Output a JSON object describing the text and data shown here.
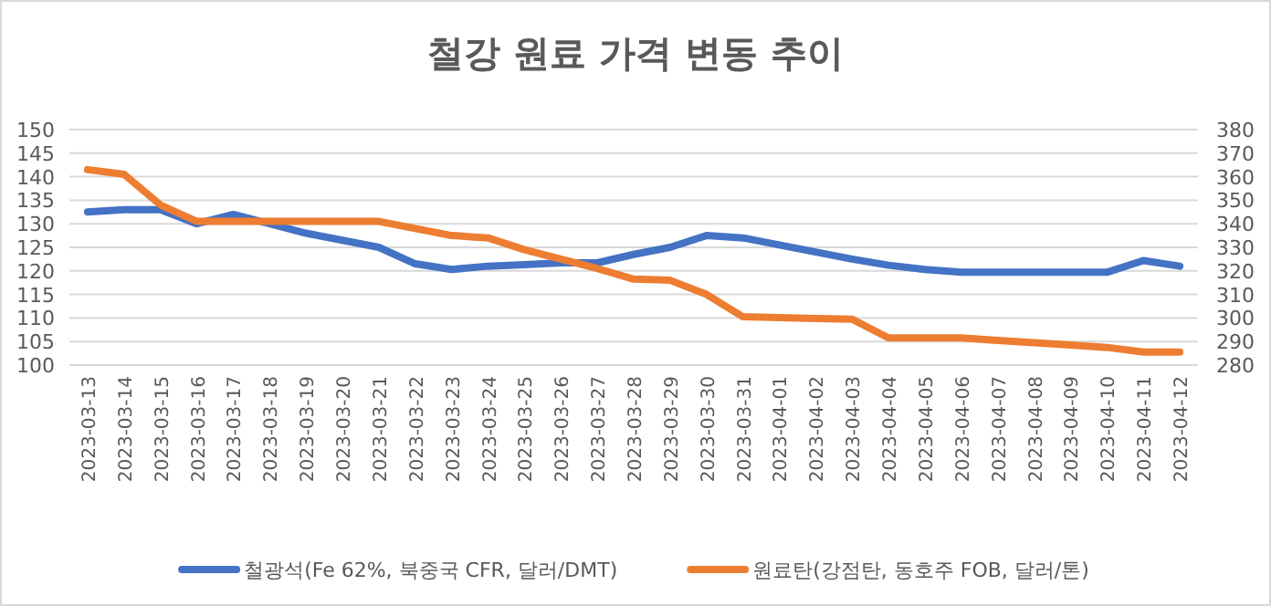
{
  "chart_data": {
    "type": "line",
    "title": "철강 원료 가격 변동 추이",
    "categories": [
      "2023-03-13",
      "2023-03-14",
      "2023-03-15",
      "2023-03-16",
      "2023-03-17",
      "2023-03-18",
      "2023-03-19",
      "2023-03-20",
      "2023-03-21",
      "2023-03-22",
      "2023-03-23",
      "2023-03-24",
      "2023-03-25",
      "2023-03-26",
      "2023-03-27",
      "2023-03-28",
      "2023-03-29",
      "2023-03-30",
      "2023-03-31",
      "2023-04-01",
      "2023-04-02",
      "2023-04-03",
      "2023-04-04",
      "2023-04-05",
      "2023-04-06",
      "2023-04-07",
      "2023-04-08",
      "2023-04-09",
      "2023-04-10",
      "2023-04-11",
      "2023-04-12"
    ],
    "series": [
      {
        "name": "철광석(Fe 62%, 북중국 CFR, 달러/DMT)",
        "color": "#4472c4",
        "values": [
          132.5,
          133,
          133,
          130,
          132,
          130,
          128,
          126.5,
          125,
          121.5,
          120.3,
          121,
          121.3,
          121.7,
          121.7,
          123.5,
          125,
          127.5,
          127,
          125.5,
          124,
          122.5,
          121.2,
          120.3,
          119.7,
          119.7,
          119.7,
          119.7,
          119.7,
          122.2,
          121
        ]
      },
      {
        "name": "원료탄(강점탄, 동호주 FOB, 달러/톤)",
        "color": "#ed7d31",
        "axis": "y2",
        "values": [
          363,
          361,
          348,
          341,
          341,
          341,
          341,
          341,
          341,
          338,
          335,
          334,
          329,
          325,
          321,
          316.5,
          316,
          310,
          300.5,
          300.2,
          299.8,
          299.5,
          291.5,
          291.5,
          291.5,
          290.5,
          289.5,
          288.5,
          287.5,
          285.5,
          285.5
        ]
      }
    ],
    "ylim": [
      100,
      150
    ],
    "yticks": [
      100,
      105,
      110,
      115,
      120,
      125,
      130,
      135,
      140,
      145,
      150
    ],
    "y2lim": [
      280,
      380
    ],
    "y2ticks": [
      280,
      290,
      300,
      310,
      320,
      330,
      340,
      350,
      360,
      370,
      380
    ],
    "grid": "y",
    "legend": "bottom",
    "line_style": "solid",
    "marker": "none"
  }
}
